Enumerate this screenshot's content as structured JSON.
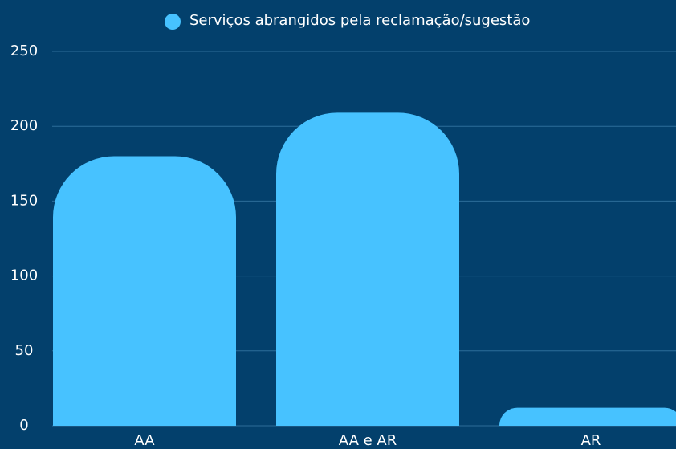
{
  "chart_data": {
    "type": "bar",
    "categories": [
      "AA",
      "AA e AR",
      "AR"
    ],
    "series": [
      {
        "name": "Serviços abrangidos pela reclamação/sugestão",
        "color": "#47c2ff",
        "values": [
          180,
          209,
          12
        ]
      }
    ],
    "ylim": [
      0,
      250
    ],
    "yticks": [
      0,
      50,
      100,
      150,
      200,
      250
    ],
    "grid": true,
    "legend": "top"
  }
}
